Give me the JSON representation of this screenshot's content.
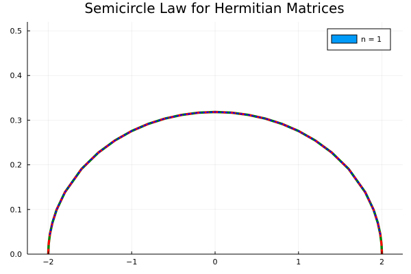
{
  "chart_data": {
    "type": "line",
    "title": "Semicircle Law for Hermitian Matrices",
    "xlabel": "",
    "ylabel": "",
    "xlim": [
      -2.25,
      2.25
    ],
    "ylim": [
      0,
      0.52
    ],
    "grid": true,
    "legend_position": "top-right",
    "x_ticks": [
      {
        "value": -2,
        "label": "−2"
      },
      {
        "value": -1,
        "label": "−1"
      },
      {
        "value": 0,
        "label": "0"
      },
      {
        "value": 1,
        "label": "1"
      },
      {
        "value": 2,
        "label": "2"
      }
    ],
    "y_ticks": [
      {
        "value": 0.0,
        "label": "0.0"
      },
      {
        "value": 0.1,
        "label": "0.1"
      },
      {
        "value": 0.2,
        "label": "0.2"
      },
      {
        "value": 0.3,
        "label": "0.3"
      },
      {
        "value": 0.4,
        "label": "0.4"
      },
      {
        "value": 0.5,
        "label": "0.5"
      }
    ],
    "legend": [
      {
        "label": "n = 1",
        "color": "#009af9",
        "kind": "bar"
      }
    ],
    "series": [
      {
        "color": "#008000",
        "style": "solid",
        "width": 3.5,
        "x": [
          -2.0,
          -1.995,
          -1.98,
          -1.95,
          -1.9,
          -1.8,
          -1.6,
          -1.4,
          -1.2,
          -1.0,
          -0.8,
          -0.6,
          -0.4,
          -0.2,
          0.0,
          0.2,
          0.4,
          0.6,
          0.8,
          1.0,
          1.2,
          1.4,
          1.6,
          1.8,
          1.9,
          1.95,
          1.98,
          1.995,
          2.0
        ],
        "y": [
          0.0,
          0.0225,
          0.0448,
          0.0705,
          0.0994,
          0.1387,
          0.191,
          0.2273,
          0.2546,
          0.2757,
          0.2918,
          0.3036,
          0.3118,
          0.3167,
          0.3183,
          0.3167,
          0.3118,
          0.3036,
          0.2918,
          0.2757,
          0.2546,
          0.2273,
          0.191,
          0.1387,
          0.0994,
          0.0705,
          0.0448,
          0.0225,
          0.0
        ]
      },
      {
        "color": "#ff0000",
        "style": "dashed",
        "width": 3,
        "x": [
          -2.0,
          -1.995,
          -1.98,
          -1.95,
          -1.9,
          -1.8,
          -1.6,
          -1.4,
          -1.2,
          -1.0,
          -0.8,
          -0.6,
          -0.4,
          -0.2,
          0.0,
          0.2,
          0.4,
          0.6,
          0.8,
          1.0,
          1.2,
          1.4,
          1.6,
          1.8,
          1.9,
          1.95,
          1.98,
          1.995,
          2.0
        ],
        "y": [
          0.0,
          0.0225,
          0.0448,
          0.0705,
          0.0994,
          0.1387,
          0.191,
          0.2273,
          0.2546,
          0.2757,
          0.2918,
          0.3036,
          0.3118,
          0.3167,
          0.3183,
          0.3167,
          0.3118,
          0.3036,
          0.2918,
          0.2757,
          0.2546,
          0.2273,
          0.191,
          0.1387,
          0.0994,
          0.0705,
          0.0448,
          0.0225,
          0.0
        ]
      },
      {
        "color": "#0000ff",
        "style": "dotted",
        "width": 2,
        "x": [
          -1.98,
          -1.95,
          -1.9,
          -1.8,
          -1.6,
          -1.4,
          -1.2,
          -1.0,
          -0.8,
          -0.6,
          -0.4,
          -0.2,
          0.0,
          0.2,
          0.4,
          0.6,
          0.8,
          1.0,
          1.2,
          1.4,
          1.6,
          1.8,
          1.9,
          1.95,
          1.98
        ],
        "y": [
          0.0448,
          0.0705,
          0.0994,
          0.1387,
          0.191,
          0.2273,
          0.2546,
          0.2757,
          0.2918,
          0.3036,
          0.3118,
          0.3167,
          0.3183,
          0.3167,
          0.3118,
          0.3036,
          0.2918,
          0.2757,
          0.2546,
          0.2273,
          0.191,
          0.1387,
          0.0994,
          0.0705,
          0.0448
        ]
      }
    ]
  }
}
